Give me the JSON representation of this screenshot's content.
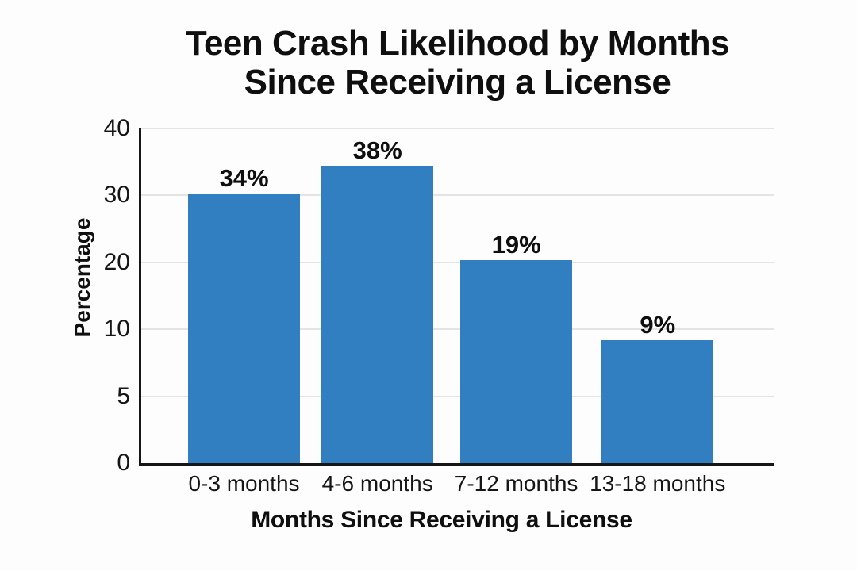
{
  "chart_data": {
    "type": "bar",
    "title": "Teen Crash Likelihood by Months Since Receiving a License",
    "title_lines": [
      "Teen Crash Likelihood by Months",
      "Since Receiving a License"
    ],
    "xlabel": "Months Since Receiving a License",
    "ylabel": "Percentage",
    "categories": [
      "0-3 months",
      "4-6 months",
      "7-12 months",
      "13-18 months"
    ],
    "values": [
      34,
      38,
      19,
      9
    ],
    "bar_labels": [
      "34%",
      "38%",
      "19%",
      "9%"
    ],
    "y_tick_labels": [
      "40",
      "30",
      "20",
      "10",
      "5",
      "0"
    ],
    "y_axis_note": "ticks evenly spaced top-to-bottom with nonlinear values",
    "grid": true,
    "legend": false,
    "bar_color": "#317fc0",
    "grid_color": "#e4e4e4",
    "axis_color": "#161616",
    "text_color": "#0f0f0f",
    "bar_left_pct": [
      7.4,
      28.5,
      50.45,
      72.8
    ],
    "bar_width_pct": 17.7,
    "bar_height_pct": [
      80.5,
      88.8,
      60.6,
      36.8
    ]
  }
}
